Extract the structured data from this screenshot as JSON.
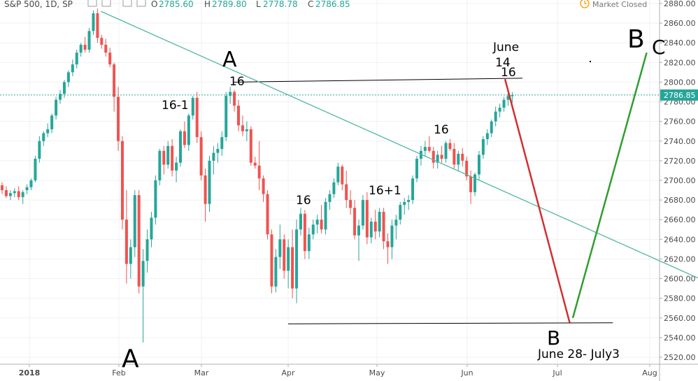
{
  "header": {
    "symbol": "S&P 500, 1D, SP",
    "open_label": "O",
    "open": "2785.60",
    "high_label": "H",
    "high": "2789.80",
    "low_label": "L",
    "low": "2778.78",
    "close_label": "C",
    "close": "2786.85",
    "market_status": "Market Closed"
  },
  "price_label": "2786.85",
  "colors": {
    "up": "#26a69a",
    "down": "#ef5350",
    "trendline": "#4db6a0",
    "projection_down": "#d32f2f",
    "projection_up": "#2e9e2e",
    "price_line": "#26a69a",
    "icon": "#ff9800"
  },
  "annotations": [
    {
      "id": "a-top",
      "text": "A"
    },
    {
      "id": "a-bottom",
      "text": "A"
    },
    {
      "id": "b-bottom",
      "text": "B"
    },
    {
      "id": "b-top",
      "text": "B"
    },
    {
      "id": "c-top",
      "text": "C"
    },
    {
      "id": "june",
      "text": "June"
    },
    {
      "id": "fourteen",
      "text": "14"
    },
    {
      "id": "sixteen-june",
      "text": "16"
    },
    {
      "id": "sixteen-mar",
      "text": "16"
    },
    {
      "id": "sixteen-minus-one",
      "text": "16-1"
    },
    {
      "id": "sixteen-apr",
      "text": "16"
    },
    {
      "id": "sixteen-plus-one",
      "text": "16+1"
    },
    {
      "id": "sixteen-may",
      "text": "16"
    },
    {
      "id": "date-range",
      "text": "June 28- July3"
    }
  ],
  "chart_data": {
    "type": "candlestick",
    "title": "S&P 500, 1D, SP",
    "ylim": [
      2510,
      2885
    ],
    "y_ticks": [
      2520,
      2540,
      2560,
      2580,
      2600,
      2620,
      2640,
      2660,
      2680,
      2700,
      2720,
      2740,
      2760,
      2780,
      2800,
      2820,
      2840,
      2860,
      2880
    ],
    "x_ticks": [
      {
        "label": "2018",
        "date": "2018-01-02",
        "bold": true
      },
      {
        "label": "Feb",
        "date": "2018-02-01"
      },
      {
        "label": "Mar",
        "date": "2018-03-01"
      },
      {
        "label": "Apr",
        "date": "2018-04-02"
      },
      {
        "label": "May",
        "date": "2018-05-01"
      },
      {
        "label": "Jun",
        "date": "2018-06-01"
      },
      {
        "label": "Jul",
        "date": "2018-07-02"
      },
      {
        "label": "Aug",
        "date": "2018-08-01"
      }
    ],
    "last_price": 2786.85,
    "candles": [
      [
        2695,
        2698,
        2686,
        2690
      ],
      [
        2690,
        2694,
        2682,
        2684
      ],
      [
        2684,
        2690,
        2680,
        2687
      ],
      [
        2687,
        2692,
        2683,
        2689
      ],
      [
        2689,
        2694,
        2680,
        2683
      ],
      [
        2683,
        2690,
        2676,
        2688
      ],
      [
        2690,
        2696,
        2686,
        2693
      ],
      [
        2693,
        2702,
        2690,
        2700
      ],
      [
        2700,
        2725,
        2698,
        2722
      ],
      [
        2722,
        2745,
        2718,
        2740
      ],
      [
        2740,
        2750,
        2735,
        2748
      ],
      [
        2748,
        2758,
        2744,
        2752
      ],
      [
        2752,
        2768,
        2748,
        2766
      ],
      [
        2766,
        2785,
        2762,
        2782
      ],
      [
        2782,
        2792,
        2778,
        2788
      ],
      [
        2788,
        2802,
        2784,
        2800
      ],
      [
        2800,
        2812,
        2795,
        2810
      ],
      [
        2810,
        2823,
        2806,
        2818
      ],
      [
        2818,
        2833,
        2814,
        2830
      ],
      [
        2830,
        2840,
        2826,
        2838
      ],
      [
        2838,
        2846,
        2830,
        2833
      ],
      [
        2833,
        2855,
        2830,
        2852
      ],
      [
        2852,
        2873,
        2848,
        2870
      ],
      [
        2870,
        2875,
        2840,
        2845
      ],
      [
        2845,
        2848,
        2834,
        2838
      ],
      [
        2838,
        2844,
        2826,
        2830
      ],
      [
        2830,
        2835,
        2815,
        2818
      ],
      [
        2818,
        2820,
        2770,
        2785
      ],
      [
        2785,
        2795,
        2730,
        2740
      ],
      [
        2740,
        2745,
        2650,
        2660
      ],
      [
        2660,
        2690,
        2595,
        2615
      ],
      [
        2615,
        2640,
        2600,
        2632
      ],
      [
        2632,
        2690,
        2622,
        2685
      ],
      [
        2685,
        2690,
        2585,
        2592
      ],
      [
        2592,
        2630,
        2535,
        2618
      ],
      [
        2618,
        2650,
        2606,
        2640
      ],
      [
        2640,
        2668,
        2632,
        2662
      ],
      [
        2662,
        2705,
        2655,
        2700
      ],
      [
        2700,
        2732,
        2695,
        2730
      ],
      [
        2730,
        2735,
        2706,
        2716
      ],
      [
        2716,
        2740,
        2712,
        2735
      ],
      [
        2735,
        2742,
        2704,
        2710
      ],
      [
        2710,
        2724,
        2698,
        2718
      ],
      [
        2718,
        2752,
        2714,
        2750
      ],
      [
        2750,
        2760,
        2733,
        2736
      ],
      [
        2736,
        2768,
        2730,
        2766
      ],
      [
        2766,
        2786,
        2762,
        2784
      ],
      [
        2784,
        2790,
        2738,
        2744
      ],
      [
        2744,
        2750,
        2700,
        2705
      ],
      [
        2705,
        2712,
        2658,
        2676
      ],
      [
        2676,
        2725,
        2668,
        2720
      ],
      [
        2720,
        2735,
        2706,
        2728
      ],
      [
        2728,
        2738,
        2718,
        2732
      ],
      [
        2732,
        2750,
        2725,
        2744
      ],
      [
        2744,
        2790,
        2740,
        2786
      ],
      [
        2786,
        2795,
        2778,
        2790
      ],
      [
        2790,
        2792,
        2770,
        2776
      ],
      [
        2776,
        2782,
        2750,
        2756
      ],
      [
        2756,
        2766,
        2745,
        2750
      ],
      [
        2750,
        2760,
        2740,
        2752
      ],
      [
        2752,
        2755,
        2715,
        2718
      ],
      [
        2718,
        2724,
        2712,
        2715
      ],
      [
        2715,
        2740,
        2690,
        2702
      ],
      [
        2702,
        2705,
        2678,
        2686
      ],
      [
        2686,
        2690,
        2640,
        2645
      ],
      [
        2645,
        2650,
        2585,
        2592
      ],
      [
        2592,
        2630,
        2586,
        2622
      ],
      [
        2622,
        2655,
        2610,
        2640
      ],
      [
        2640,
        2645,
        2600,
        2608
      ],
      [
        2608,
        2640,
        2590,
        2632
      ],
      [
        2632,
        2650,
        2580,
        2590
      ],
      [
        2590,
        2660,
        2575,
        2650
      ],
      [
        2650,
        2672,
        2644,
        2666
      ],
      [
        2666,
        2670,
        2620,
        2628
      ],
      [
        2628,
        2652,
        2620,
        2645
      ],
      [
        2645,
        2660,
        2640,
        2655
      ],
      [
        2655,
        2665,
        2646,
        2660
      ],
      [
        2660,
        2675,
        2646,
        2650
      ],
      [
        2650,
        2682,
        2645,
        2678
      ],
      [
        2678,
        2690,
        2670,
        2686
      ],
      [
        2686,
        2702,
        2682,
        2698
      ],
      [
        2698,
        2718,
        2695,
        2714
      ],
      [
        2714,
        2716,
        2690,
        2696
      ],
      [
        2696,
        2710,
        2672,
        2680
      ],
      [
        2680,
        2690,
        2665,
        2672
      ],
      [
        2672,
        2680,
        2640,
        2644
      ],
      [
        2644,
        2660,
        2618,
        2654
      ],
      [
        2654,
        2685,
        2650,
        2680
      ],
      [
        2680,
        2688,
        2635,
        2642
      ],
      [
        2642,
        2662,
        2636,
        2658
      ],
      [
        2658,
        2670,
        2640,
        2648
      ],
      [
        2648,
        2672,
        2642,
        2668
      ],
      [
        2668,
        2672,
        2630,
        2638
      ],
      [
        2638,
        2646,
        2615,
        2632
      ],
      [
        2632,
        2660,
        2620,
        2654
      ],
      [
        2654,
        2665,
        2640,
        2660
      ],
      [
        2660,
        2678,
        2655,
        2675
      ],
      [
        2675,
        2682,
        2665,
        2678
      ],
      [
        2678,
        2685,
        2670,
        2680
      ],
      [
        2680,
        2705,
        2676,
        2702
      ],
      [
        2702,
        2725,
        2698,
        2722
      ],
      [
        2722,
        2735,
        2715,
        2730
      ],
      [
        2730,
        2740,
        2724,
        2734
      ],
      [
        2734,
        2745,
        2728,
        2730
      ],
      [
        2730,
        2734,
        2712,
        2718
      ],
      [
        2718,
        2730,
        2712,
        2726
      ],
      [
        2726,
        2735,
        2718,
        2722
      ],
      [
        2722,
        2740,
        2718,
        2738
      ],
      [
        2738,
        2742,
        2730,
        2732
      ],
      [
        2732,
        2738,
        2712,
        2716
      ],
      [
        2716,
        2730,
        2710,
        2727
      ],
      [
        2727,
        2733,
        2714,
        2720
      ],
      [
        2720,
        2724,
        2700,
        2704
      ],
      [
        2704,
        2710,
        2676,
        2688
      ],
      [
        2688,
        2708,
        2684,
        2706
      ],
      [
        2706,
        2730,
        2700,
        2726
      ],
      [
        2726,
        2745,
        2722,
        2742
      ],
      [
        2742,
        2752,
        2736,
        2748
      ],
      [
        2748,
        2762,
        2744,
        2760
      ],
      [
        2760,
        2775,
        2755,
        2770
      ],
      [
        2770,
        2778,
        2764,
        2774
      ],
      [
        2774,
        2785,
        2770,
        2782
      ],
      [
        2782,
        2790,
        2776,
        2786
      ],
      [
        2785.6,
        2789.8,
        2778.78,
        2786.85
      ]
    ],
    "levels": [
      {
        "from_date": "2018-03-13",
        "to_date": "2018-06-20",
        "from_value": 2800,
        "to_value": 2804
      },
      {
        "from_date": "2018-04-02",
        "to_date": "2018-07-20",
        "from_value": 2554,
        "to_value": 2555
      }
    ],
    "trendline": {
      "from_date": "2018-01-26",
      "to_date": "2018-08-30",
      "from_value": 2872,
      "to_value": 2582
    },
    "projections": [
      {
        "from_date": "2018-06-14",
        "to_date": "2018-07-06",
        "from_value": 2803,
        "to_value": 2555
      },
      {
        "from_date": "2018-07-07",
        "to_date": "2018-07-31",
        "from_value": 2560,
        "to_value": 2830
      }
    ]
  }
}
